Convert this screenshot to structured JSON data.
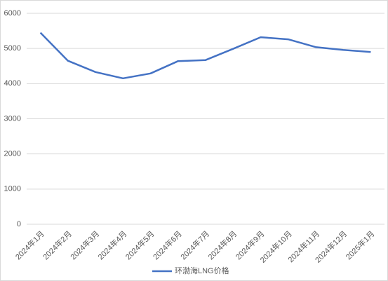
{
  "chart_data": {
    "type": "line",
    "categories": [
      "2024年1月",
      "2024年2月",
      "2024年3月",
      "2024年4月",
      "2024年5月",
      "2024年6月",
      "2024年7月",
      "2024年8月",
      "2024年9月",
      "2024年10月",
      "2024年11月",
      "2024年12月",
      "2025年1月"
    ],
    "series": [
      {
        "name": "环渤海LNG价格",
        "color": "#4472c4",
        "values": [
          5450,
          4650,
          4330,
          4150,
          4290,
          4640,
          4670,
          4990,
          5320,
          5260,
          5040,
          4960,
          4900
        ]
      }
    ],
    "ylim": [
      0,
      6000
    ],
    "yticks": [
      0,
      1000,
      2000,
      3000,
      4000,
      5000,
      6000
    ],
    "grid": true,
    "legend": "bottom"
  }
}
